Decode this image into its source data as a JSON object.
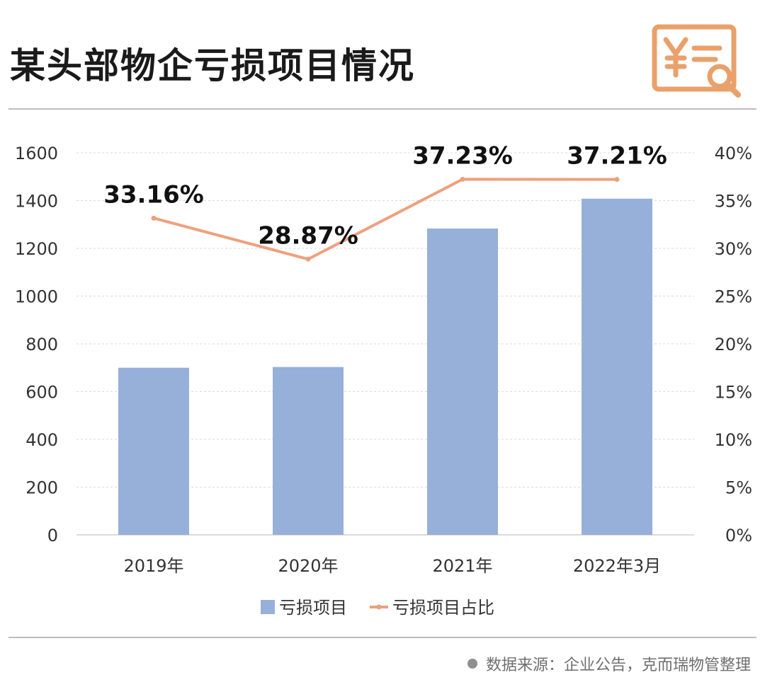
{
  "header": {
    "title": "某头部物企亏损项目情况",
    "logo_icon": "yuan-receipt-search-icon",
    "logo_color": "#E9A06B"
  },
  "footer": {
    "source": "数据来源：企业公告，克而瑞物管整理"
  },
  "chart_data": {
    "type": "bar",
    "categories": [
      "2019年",
      "2020年",
      "2021年",
      "2022年3月"
    ],
    "series": [
      {
        "name": "亏损项目",
        "type": "bar",
        "axis": "left",
        "color": "#97B0DA",
        "values": [
          700,
          703,
          1283,
          1408
        ]
      },
      {
        "name": "亏损项目占比",
        "type": "line",
        "axis": "right",
        "color": "#EEA07C",
        "values": [
          33.16,
          28.87,
          37.23,
          37.21
        ],
        "labels": [
          "33.16%",
          "28.87%",
          "37.23%",
          "37.21%"
        ]
      }
    ],
    "y_left": {
      "min": 0,
      "max": 1600,
      "ticks": [
        "0",
        "200",
        "400",
        "600",
        "800",
        "1000",
        "1200",
        "1400",
        "1600"
      ]
    },
    "y_right": {
      "min": 0,
      "max": 40,
      "ticks": [
        "0%",
        "5%",
        "10%",
        "15%",
        "20%",
        "25%",
        "30%",
        "35%",
        "40%"
      ]
    },
    "grid": true,
    "legend_position": "bottom"
  }
}
